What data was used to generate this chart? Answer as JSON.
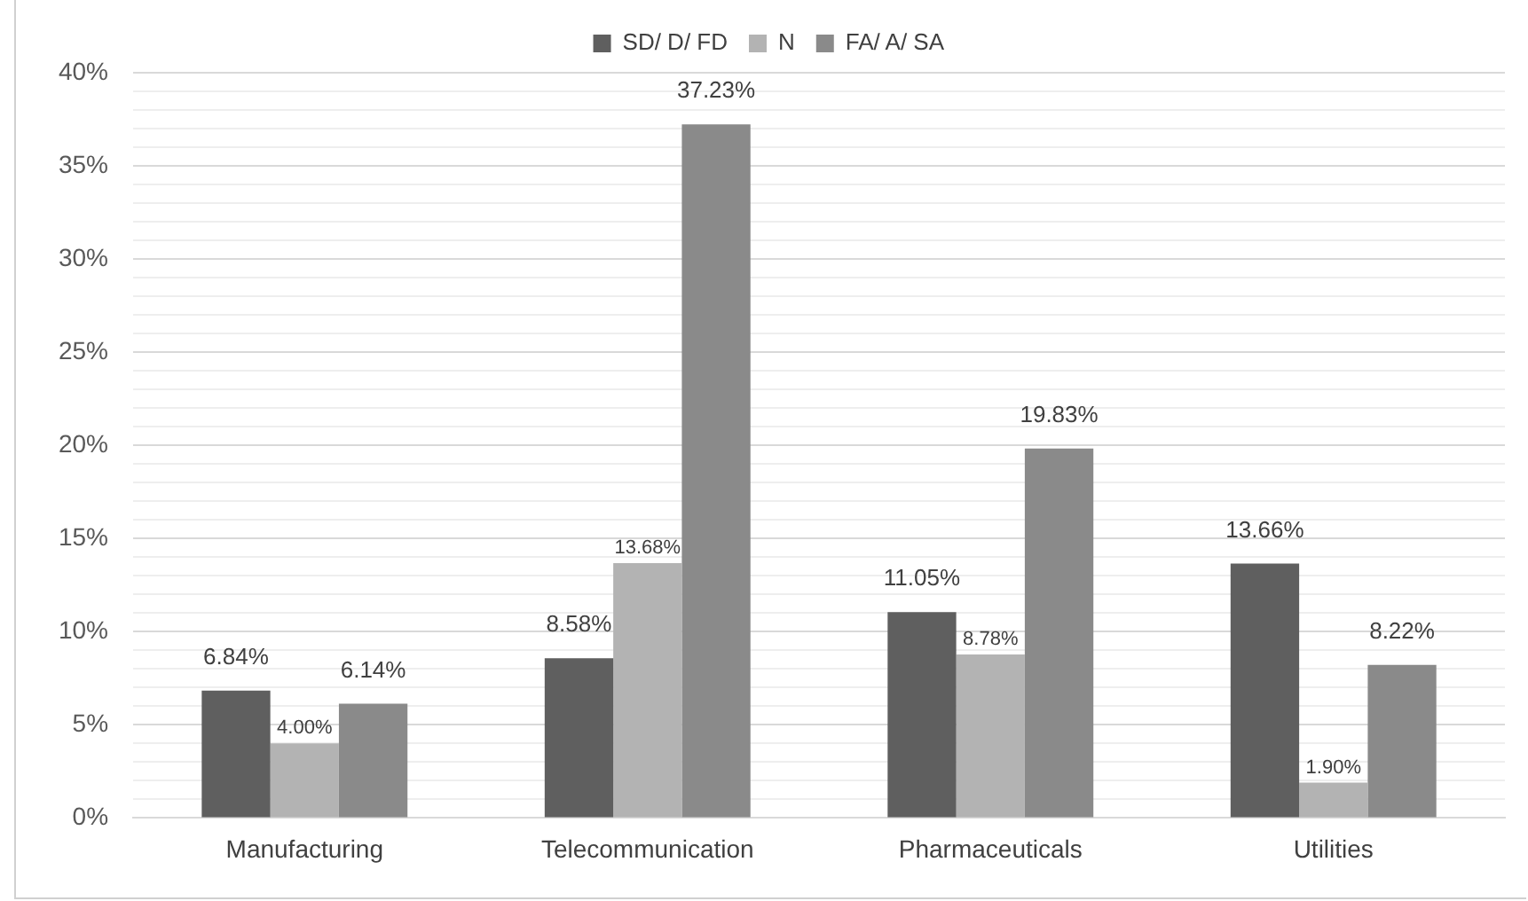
{
  "chart_data": {
    "type": "bar",
    "categories": [
      "Manufacturing",
      "Telecommunication",
      "Pharmaceuticals",
      "Utilities"
    ],
    "series": [
      {
        "name": "SD/ D/ FD",
        "color": "#5f5f5f",
        "values": [
          6.84,
          8.58,
          11.05,
          13.66
        ],
        "value_labels": [
          "6.84%",
          "8.58%",
          "11.05%",
          "13.66%"
        ]
      },
      {
        "name": "N",
        "color": "#b3b3b3",
        "values": [
          4.0,
          13.68,
          8.78,
          1.9
        ],
        "value_labels": [
          "4.00%",
          "13.68%",
          "8.78%",
          "1.90%"
        ]
      },
      {
        "name": "FA/ A/ SA",
        "color": "#8a8a8a",
        "values": [
          6.14,
          37.23,
          19.83,
          8.22
        ],
        "value_labels": [
          "6.14%",
          "37.23%",
          "19.83%",
          "8.22%"
        ]
      }
    ],
    "ylim": [
      0,
      40
    ],
    "yticks": [
      {
        "value": 0,
        "label": "0%"
      },
      {
        "value": 1,
        "label": null
      },
      {
        "value": 2,
        "label": null
      },
      {
        "value": 3,
        "label": null
      },
      {
        "value": 4,
        "label": null
      },
      {
        "value": 5,
        "label": "5%"
      },
      {
        "value": 6,
        "label": null
      },
      {
        "value": 7,
        "label": null
      },
      {
        "value": 8,
        "label": null
      },
      {
        "value": 9,
        "label": null
      },
      {
        "value": 10,
        "label": "10%"
      },
      {
        "value": 11,
        "label": null
      },
      {
        "value": 12,
        "label": null
      },
      {
        "value": 13,
        "label": null
      },
      {
        "value": 14,
        "label": null
      },
      {
        "value": 15,
        "label": "15%"
      },
      {
        "value": 16,
        "label": null
      },
      {
        "value": 17,
        "label": null
      },
      {
        "value": 18,
        "label": null
      },
      {
        "value": 19,
        "label": null
      },
      {
        "value": 20,
        "label": "20%"
      },
      {
        "value": 21,
        "label": null
      },
      {
        "value": 22,
        "label": null
      },
      {
        "value": 23,
        "label": null
      },
      {
        "value": 24,
        "label": null
      },
      {
        "value": 25,
        "label": "25%"
      },
      {
        "value": 26,
        "label": null
      },
      {
        "value": 27,
        "label": null
      },
      {
        "value": 28,
        "label": null
      },
      {
        "value": 29,
        "label": null
      },
      {
        "value": 30,
        "label": "30%"
      },
      {
        "value": 31,
        "label": null
      },
      {
        "value": 32,
        "label": null
      },
      {
        "value": 33,
        "label": null
      },
      {
        "value": 34,
        "label": null
      },
      {
        "value": 35,
        "label": "35%"
      },
      {
        "value": 36,
        "label": null
      },
      {
        "value": 37,
        "label": null
      },
      {
        "value": 38,
        "label": null
      },
      {
        "value": 39,
        "label": null
      },
      {
        "value": 40,
        "label": "40%"
      }
    ],
    "grid": "y",
    "legend": "top"
  }
}
